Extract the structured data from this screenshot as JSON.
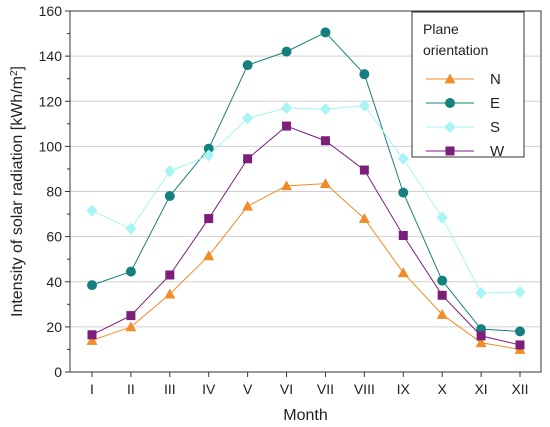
{
  "chart_data": {
    "type": "line",
    "title": "",
    "xlabel": "Month",
    "ylabel_main": "Intensity of solar radiation [kWh/m",
    "ylabel_sup": "2",
    "ylabel_end": "]",
    "ylim": [
      0,
      160
    ],
    "yticks": [
      0,
      20,
      40,
      60,
      80,
      100,
      120,
      140,
      160
    ],
    "grid": "horizontal",
    "categories": [
      "I",
      "II",
      "III",
      "IV",
      "V",
      "VI",
      "VII",
      "VIII",
      "IX",
      "X",
      "XI",
      "XII"
    ],
    "legend": {
      "placement": "top-right",
      "title_line1": "Plane",
      "title_line2": "orientation"
    },
    "series": [
      {
        "name": "N",
        "color": "#f28c28",
        "marker": "triangle",
        "values": [
          14,
          20,
          34.5,
          51.5,
          73.5,
          82.5,
          83.5,
          68,
          44,
          25.5,
          13,
          10
        ]
      },
      {
        "name": "E",
        "color": "#17807e",
        "marker": "circle",
        "values": [
          38.5,
          44.5,
          78,
          99,
          136,
          142,
          150.5,
          132,
          79.5,
          40.5,
          19,
          18
        ]
      },
      {
        "name": "S",
        "color": "#a6f4f4",
        "marker": "diamond",
        "values": [
          71.5,
          63.5,
          89,
          96,
          112.5,
          117,
          116.5,
          118,
          94.5,
          68.5,
          35,
          35.5
        ]
      },
      {
        "name": "W",
        "color": "#7b1f7b",
        "marker": "square",
        "values": [
          16.5,
          25,
          43,
          68,
          94.5,
          109,
          102.5,
          89.5,
          60.5,
          34,
          16,
          12
        ]
      }
    ]
  }
}
